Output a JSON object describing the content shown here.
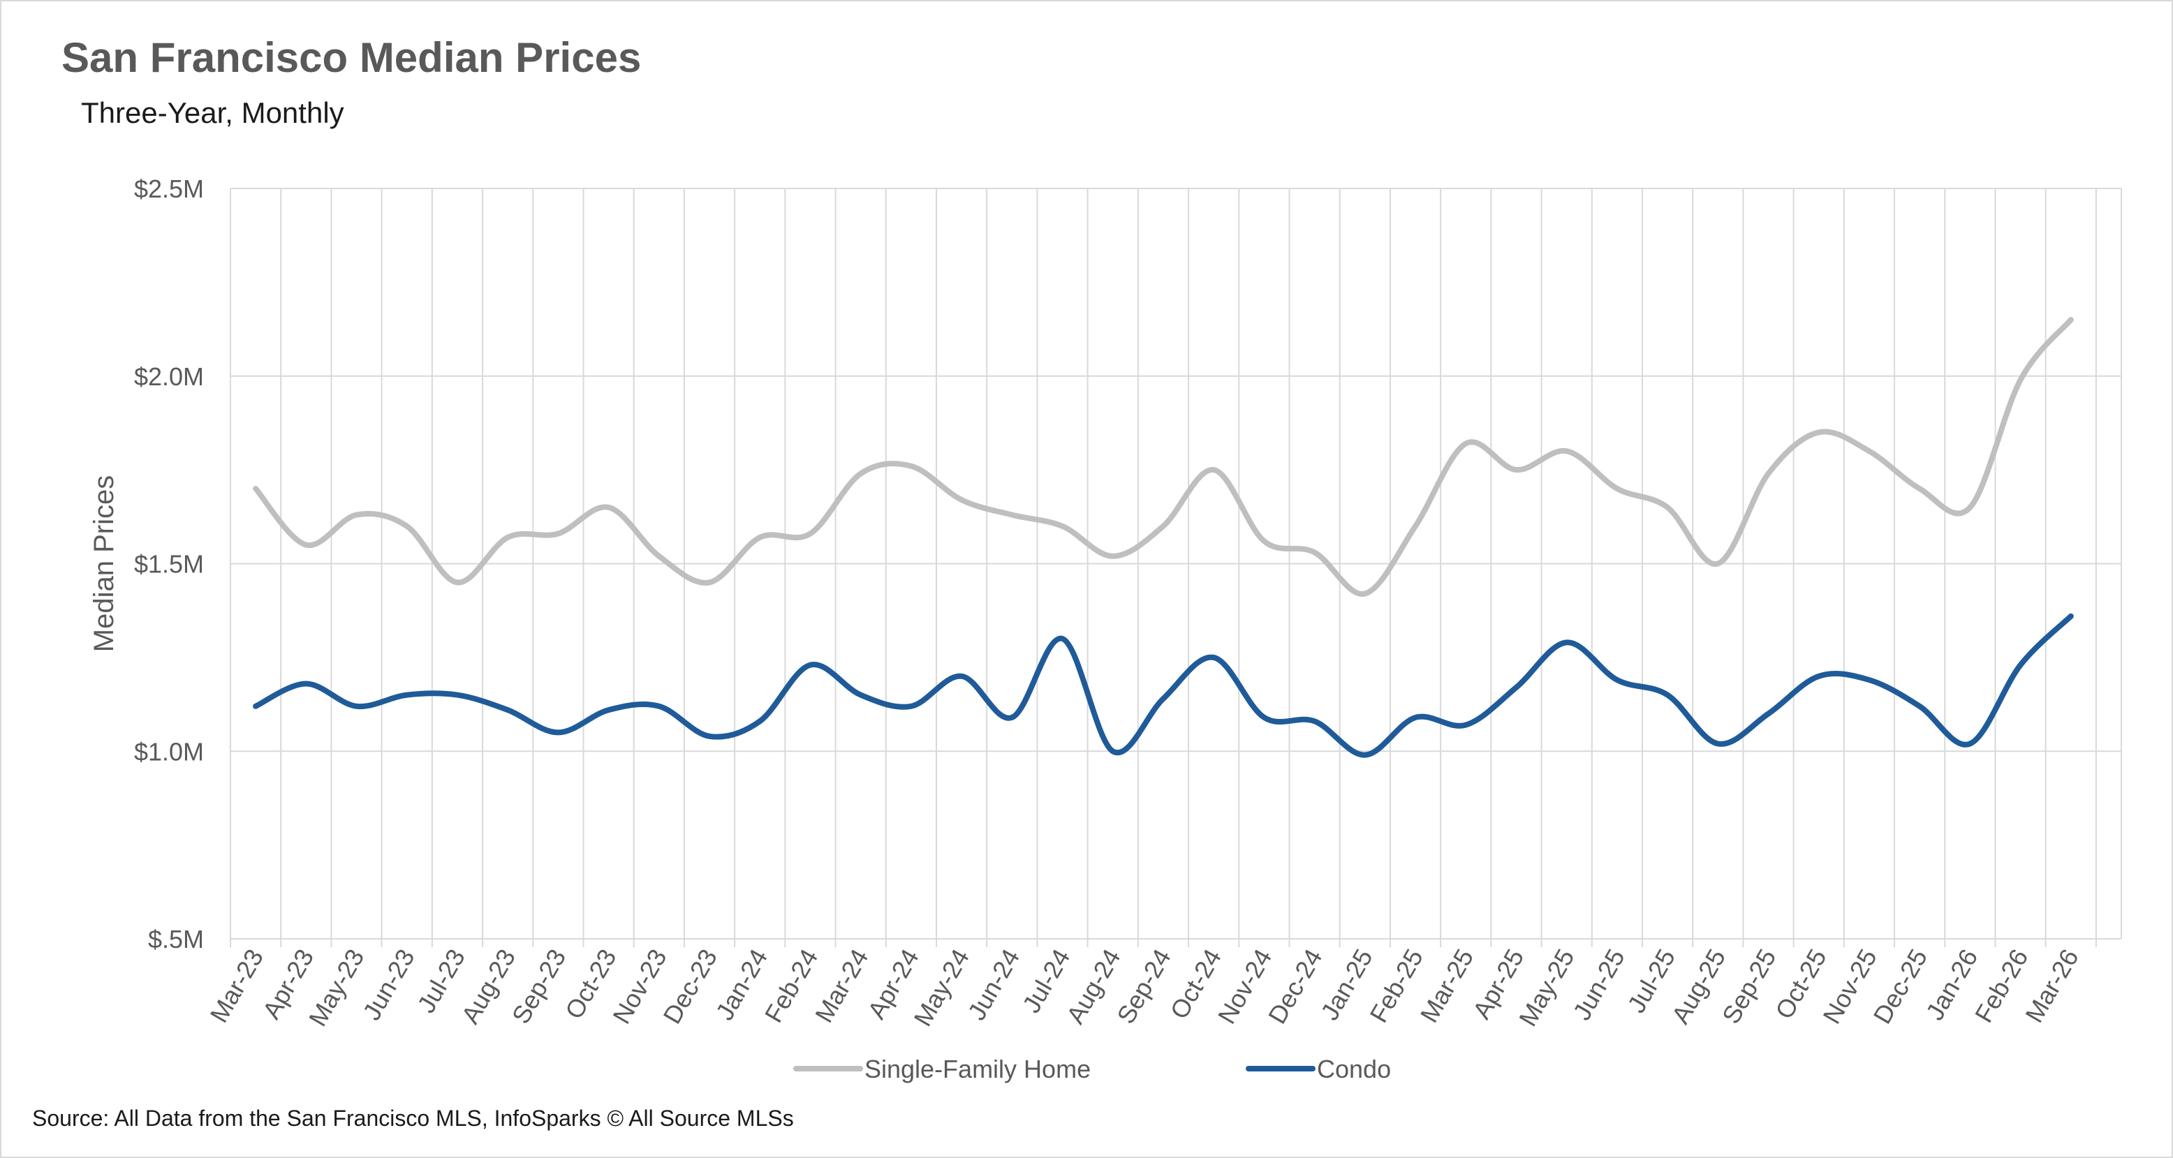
{
  "chart_data": {
    "type": "line",
    "title": "San Francisco Median Prices",
    "subtitle": "Three-Year, Monthly",
    "ylabel": "Median Prices",
    "xlabel": "",
    "ylim": [
      0.5,
      2.5
    ],
    "yticks": [
      0.5,
      1.0,
      1.5,
      2.0,
      2.5
    ],
    "ytick_labels": [
      "$.5M",
      "$1.0M",
      "$1.5M",
      "$2.0M",
      "$2.5M"
    ],
    "y_units": "$M",
    "grid": "vertical and horizontal gridlines",
    "legend_position": "bottom",
    "categories": [
      "Mar-23",
      "Apr-23",
      "May-23",
      "Jun-23",
      "Jul-23",
      "Aug-23",
      "Sep-23",
      "Oct-23",
      "Nov-23",
      "Dec-23",
      "Jan-24",
      "Feb-24",
      "Mar-24",
      "Apr-24",
      "May-24",
      "Jun-24",
      "Jul-24",
      "Aug-24",
      "Sep-24",
      "Oct-24",
      "Nov-24",
      "Dec-24",
      "Jan-25",
      "Feb-25",
      "Mar-25",
      "Apr-25",
      "May-25",
      "Jun-25",
      "Jul-25",
      "Aug-25",
      "Sep-25",
      "Oct-25",
      "Nov-25",
      "Dec-25",
      "Jan-26",
      "Feb-26",
      "Mar-26"
    ],
    "series": [
      {
        "name": "Single-Family Home",
        "color": "#bfbfbf",
        "values": [
          1.7,
          1.55,
          1.63,
          1.6,
          1.45,
          1.57,
          1.58,
          1.65,
          1.52,
          1.45,
          1.57,
          1.58,
          1.74,
          1.76,
          1.67,
          1.63,
          1.6,
          1.52,
          1.6,
          1.75,
          1.56,
          1.53,
          1.42,
          1.6,
          1.82,
          1.75,
          1.8,
          1.7,
          1.65,
          1.5,
          1.74,
          1.85,
          1.8,
          1.7,
          1.65,
          1.99,
          2.15
        ]
      },
      {
        "name": "Condo",
        "color": "#1f5b99",
        "values": [
          1.12,
          1.18,
          1.12,
          1.15,
          1.15,
          1.11,
          1.05,
          1.11,
          1.12,
          1.04,
          1.08,
          1.23,
          1.15,
          1.12,
          1.2,
          1.09,
          1.3,
          1.0,
          1.14,
          1.25,
          1.09,
          1.08,
          0.99,
          1.09,
          1.07,
          1.17,
          1.29,
          1.19,
          1.15,
          1.02,
          1.1,
          1.2,
          1.19,
          1.12,
          1.02,
          1.23,
          1.36
        ]
      }
    ]
  },
  "footer": {
    "source": "Source: All Data from the San Francisco MLS, InfoSparks © All Source MLSs"
  }
}
